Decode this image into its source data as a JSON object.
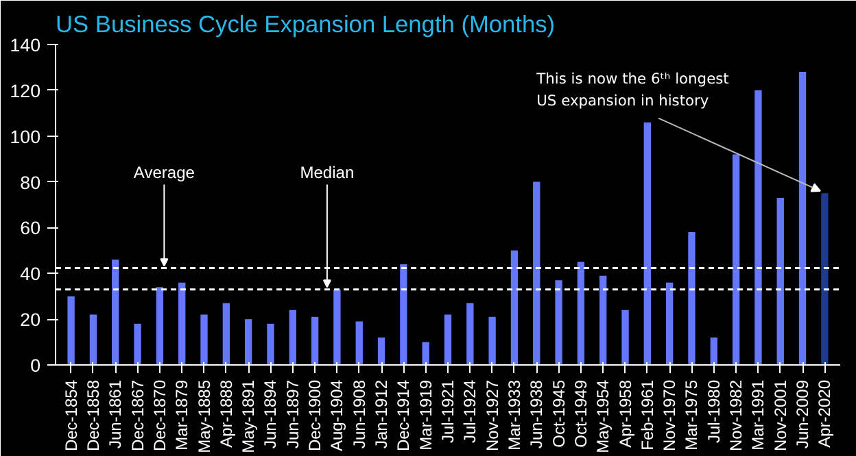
{
  "chart_data": {
    "type": "bar",
    "title": "US Business Cycle Expansion Length (Months)",
    "categories": [
      "Dec-1854",
      "Dec-1858",
      "Jun-1861",
      "Dec-1867",
      "Dec-1870",
      "Mar-1879",
      "May-1885",
      "Apr-1888",
      "May-1891",
      "Jun-1894",
      "Jun-1897",
      "Dec-1900",
      "Aug-1904",
      "Jun-1908",
      "Jan-1912",
      "Dec-1914",
      "Mar-1919",
      "Jul-1921",
      "Jul-1924",
      "Nov-1927",
      "Mar-1933",
      "Jun-1938",
      "Oct-1945",
      "Oct-1949",
      "May-1954",
      "Apr-1958",
      "Feb-1961",
      "Nov-1970",
      "Mar-1975",
      "Jul-1980",
      "Nov-1982",
      "Mar-1991",
      "Nov-2001",
      "Jun-2009",
      "Apr-2020"
    ],
    "values": [
      30,
      22,
      46,
      18,
      34,
      36,
      22,
      27,
      20,
      18,
      24,
      21,
      33,
      19,
      12,
      44,
      10,
      22,
      27,
      21,
      50,
      80,
      37,
      45,
      39,
      24,
      106,
      36,
      58,
      12,
      92,
      120,
      73,
      128,
      75
    ],
    "colors": [
      "#6677ff",
      "#6677ff",
      "#6677ff",
      "#6677ff",
      "#6677ff",
      "#6677ff",
      "#6677ff",
      "#6677ff",
      "#6677ff",
      "#6677ff",
      "#6677ff",
      "#6677ff",
      "#6677ff",
      "#6677ff",
      "#6677ff",
      "#6677ff",
      "#6677ff",
      "#6677ff",
      "#6677ff",
      "#6677ff",
      "#6677ff",
      "#6677ff",
      "#6677ff",
      "#6677ff",
      "#6677ff",
      "#6677ff",
      "#6677ff",
      "#6677ff",
      "#6677ff",
      "#6677ff",
      "#6677ff",
      "#6677ff",
      "#6677ff",
      "#6677ff",
      "#1f3a8f"
    ],
    "ylim": [
      0,
      140
    ],
    "yticks": [
      0,
      20,
      40,
      60,
      80,
      100,
      120,
      140
    ],
    "grid": false,
    "ref_lines": [
      {
        "axis": "y",
        "value": 42.3,
        "label": "Average",
        "color": "#ffffff",
        "line_style": "dashed"
      },
      {
        "axis": "y",
        "value": 33,
        "label": "Median",
        "color": "#ffffff",
        "line_style": "dashed"
      }
    ],
    "annotations": [
      {
        "text": "This is now the 6ᵗʰ longest US expansion in history",
        "x": "Apr-2020",
        "y": 75
      }
    ]
  }
}
